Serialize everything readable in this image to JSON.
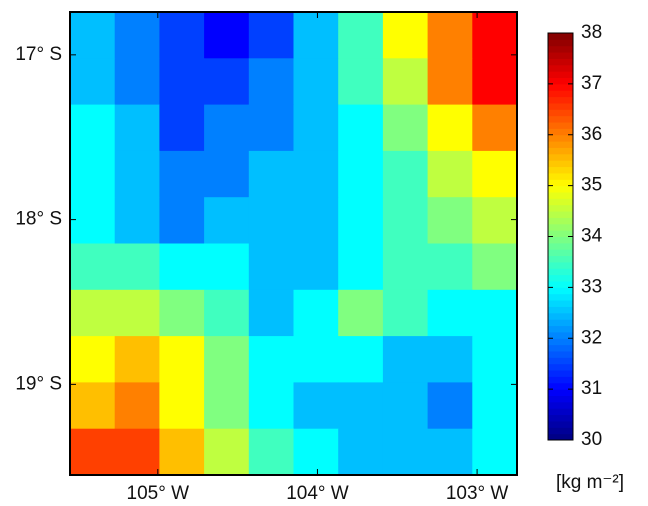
{
  "chart_data": {
    "type": "heatmap",
    "colormap": "jet",
    "xlim": [
      -105.55,
      -102.75
    ],
    "ylim": [
      -19.55,
      -16.74
    ],
    "xticks": [
      {
        "value": -105,
        "label": "105° W"
      },
      {
        "value": -104,
        "label": "104° W"
      },
      {
        "value": -103,
        "label": "103° W"
      }
    ],
    "yticks": [
      {
        "value": -17,
        "label": "17° S"
      },
      {
        "value": -18,
        "label": "18° S"
      },
      {
        "value": -19,
        "label": "19° S"
      }
    ],
    "clim": [
      30,
      38
    ],
    "cticks": [
      30,
      31,
      32,
      33,
      34,
      35,
      36,
      37,
      38
    ],
    "colorbar_label": "[kg m⁻²]",
    "values": [
      [
        32.5,
        32,
        31.5,
        31,
        31.5,
        32.5,
        33.5,
        35,
        36,
        37
      ],
      [
        32.5,
        32,
        31.5,
        31.5,
        32,
        32.5,
        33.5,
        34.5,
        36,
        37
      ],
      [
        33,
        32.5,
        31.5,
        32,
        32,
        32.5,
        33,
        34,
        35,
        36
      ],
      [
        33,
        32.5,
        32,
        32,
        32.5,
        32.5,
        33,
        33.5,
        34.5,
        35
      ],
      [
        33,
        32.5,
        32,
        32.5,
        32.5,
        32.5,
        33,
        33.5,
        34,
        34.5
      ],
      [
        33.5,
        33.5,
        33,
        33,
        32.5,
        32.5,
        33,
        33.5,
        33.5,
        34
      ],
      [
        34.5,
        34.5,
        34,
        33.5,
        32.5,
        33,
        34,
        33.5,
        33,
        33
      ],
      [
        35,
        35.5,
        35,
        34,
        33,
        33,
        33,
        32.5,
        32.5,
        33
      ],
      [
        35.5,
        36,
        35,
        34,
        33,
        32.5,
        32.5,
        32.5,
        32,
        33
      ],
      [
        36.5,
        36.5,
        35.5,
        34.5,
        33.5,
        33,
        32.5,
        32.5,
        32.5,
        33
      ]
    ]
  }
}
